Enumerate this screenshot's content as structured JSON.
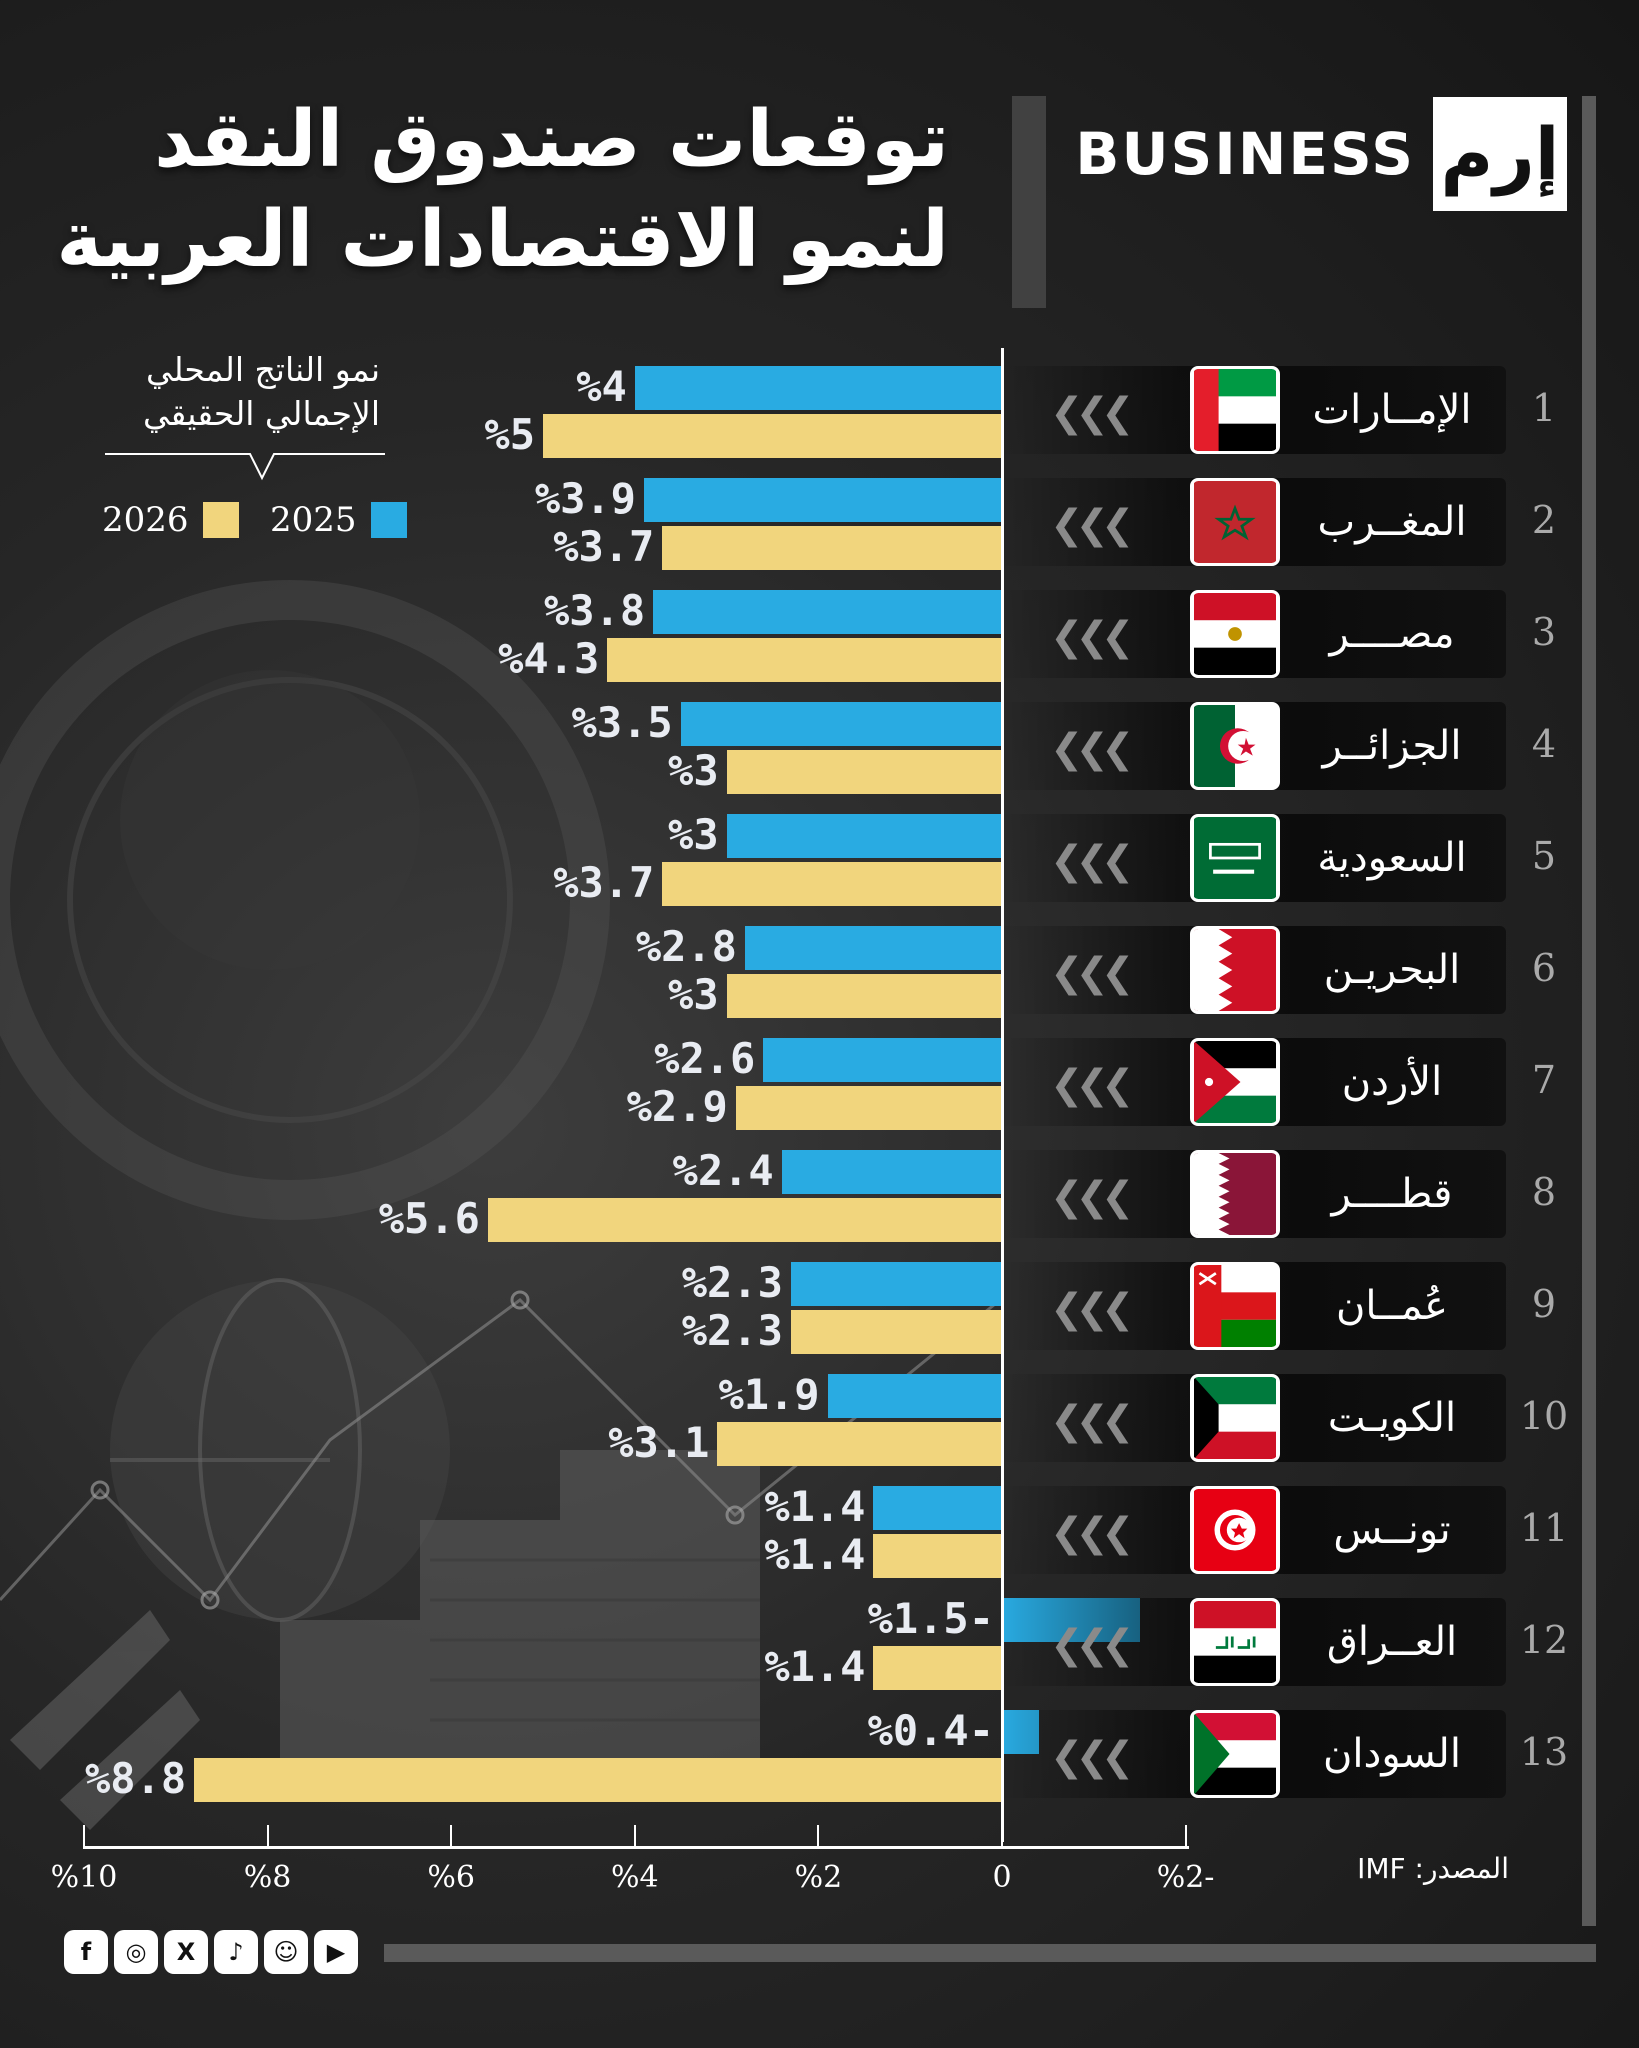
{
  "header": {
    "title_line1": "توقعات صندوق النقد",
    "title_line2": "لنمو الاقتصادات العربية",
    "brand_text": "BUSINESS",
    "brand_logo": "إرم"
  },
  "legend": {
    "title_line1": "نمو الناتج المحلي",
    "title_line2": "الإجمالي الحقيقي",
    "label_2025": "2025",
    "label_2026": "2026",
    "color_2025": "#29abe2",
    "color_2026": "#f1d57d"
  },
  "source": "المصدر: IMF",
  "social": [
    "facebook-icon",
    "instagram-icon",
    "x-icon",
    "tiktok-icon",
    "snapchat-icon",
    "youtube-icon"
  ],
  "chart_data": {
    "type": "bar",
    "orientation": "horizontal",
    "title": "توقعات صندوق النقد لنمو الاقتصادات العربية",
    "xlabel": "",
    "ylabel": "",
    "xlim": [
      -2,
      10
    ],
    "x_axis_reversed": true,
    "ticks": [
      {
        "value": 10,
        "label": "%10"
      },
      {
        "value": 8,
        "label": "%8"
      },
      {
        "value": 6,
        "label": "%6"
      },
      {
        "value": 4,
        "label": "%4"
      },
      {
        "value": 2,
        "label": "%2"
      },
      {
        "value": 0,
        "label": "0"
      },
      {
        "value": -2,
        "label": "%2-"
      }
    ],
    "legend": "top-left",
    "series_names": [
      "2025",
      "2026"
    ],
    "rows": [
      {
        "rank": "1",
        "country": "الإمــارات",
        "flag": "uae-flag-icon",
        "v2025": 4,
        "l2025": "%4",
        "v2026": 5,
        "l2026": "%5"
      },
      {
        "rank": "2",
        "country": "المغــرب",
        "flag": "morocco-flag-icon",
        "v2025": 3.9,
        "l2025": "%3.9",
        "v2026": 3.7,
        "l2026": "%3.7"
      },
      {
        "rank": "3",
        "country": "مصــــر",
        "flag": "egypt-flag-icon",
        "v2025": 3.8,
        "l2025": "%3.8",
        "v2026": 4.3,
        "l2026": "%4.3"
      },
      {
        "rank": "4",
        "country": "الجزائــر",
        "flag": "algeria-flag-icon",
        "v2025": 3.5,
        "l2025": "%3.5",
        "v2026": 3,
        "l2026": "%3"
      },
      {
        "rank": "5",
        "country": "السعودية",
        "flag": "saudi-flag-icon",
        "v2025": 3,
        "l2025": "%3",
        "v2026": 3.7,
        "l2026": "%3.7"
      },
      {
        "rank": "6",
        "country": "البحريـن",
        "flag": "bahrain-flag-icon",
        "v2025": 2.8,
        "l2025": "%2.8",
        "v2026": 3,
        "l2026": "%3"
      },
      {
        "rank": "7",
        "country": "الأردن",
        "flag": "jordan-flag-icon",
        "v2025": 2.6,
        "l2025": "%2.6",
        "v2026": 2.9,
        "l2026": "%2.9"
      },
      {
        "rank": "8",
        "country": "قطــــر",
        "flag": "qatar-flag-icon",
        "v2025": 2.4,
        "l2025": "%2.4",
        "v2026": 5.6,
        "l2026": "%5.6"
      },
      {
        "rank": "9",
        "country": "عُمــان",
        "flag": "oman-flag-icon",
        "v2025": 2.3,
        "l2025": "%2.3",
        "v2026": 2.3,
        "l2026": "%2.3"
      },
      {
        "rank": "10",
        "country": "الكويـت",
        "flag": "kuwait-flag-icon",
        "v2025": 1.9,
        "l2025": "%1.9",
        "v2026": 3.1,
        "l2026": "%3.1"
      },
      {
        "rank": "11",
        "country": "تونــس",
        "flag": "tunisia-flag-icon",
        "v2025": 1.4,
        "l2025": "%1.4",
        "v2026": 1.4,
        "l2026": "%1.4"
      },
      {
        "rank": "12",
        "country": "العــراق",
        "flag": "iraq-flag-icon",
        "v2025": -1.5,
        "l2025": "%1.5-",
        "v2026": 1.4,
        "l2026": "%1.4"
      },
      {
        "rank": "13",
        "country": "السودان",
        "flag": "sudan-flag-icon",
        "v2025": -0.4,
        "l2025": "%0.4-",
        "v2026": 8.8,
        "l2026": "%8.8"
      }
    ]
  }
}
